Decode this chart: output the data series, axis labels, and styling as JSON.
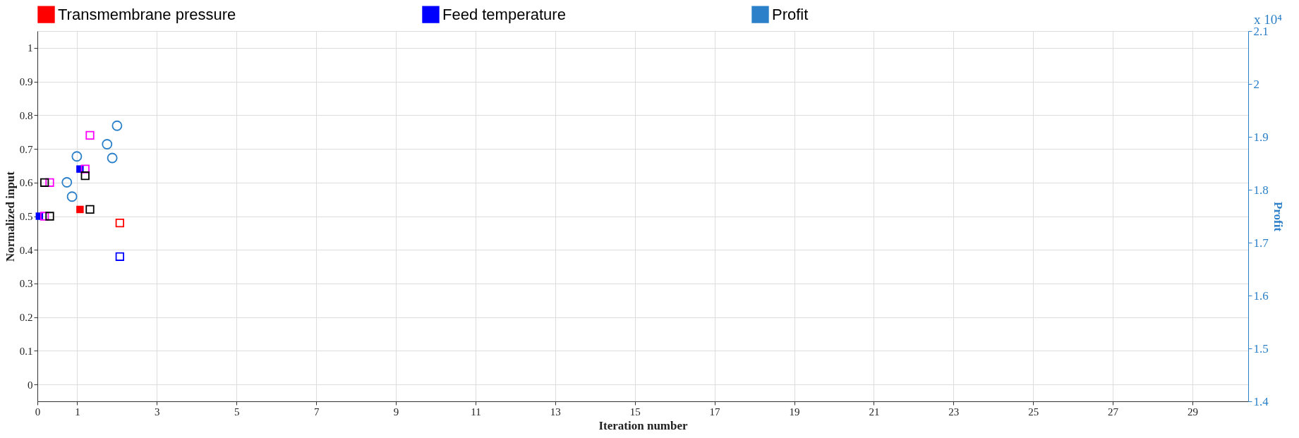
{
  "chart_data": {
    "type": "scatter",
    "xlabel": "Iteration number",
    "ylabel": "Normalized input",
    "y2label": "Profit",
    "xlim": [
      0,
      30.4
    ],
    "xticks": [
      0,
      1,
      3,
      5,
      7,
      9,
      11,
      13,
      15,
      17,
      19,
      21,
      23,
      25,
      27,
      29
    ],
    "ylim": [
      -0.05,
      1.05
    ],
    "yticks": [
      0,
      0.1,
      0.2,
      0.3,
      0.4,
      0.5,
      0.6,
      0.7,
      0.8,
      0.9,
      1
    ],
    "y2lim": [
      1.4,
      2.1
    ],
    "y2ticks": [
      1.4,
      1.5,
      1.6,
      1.7,
      1.8,
      1.9,
      2,
      2.1
    ],
    "annotations": [
      "x 10⁴"
    ],
    "grid": true,
    "legend": "top",
    "marker": "square",
    "series": [
      {
        "name": "Transmembrane pressure",
        "color": "#ff0000",
        "x": [
          1.07
        ],
        "values": [
          0.52
        ]
      },
      {
        "name": "Feed temperature",
        "color": "#0000ff",
        "x": [
          0.05,
          1.07
        ],
        "values": [
          0.5,
          0.64
        ]
      },
      {
        "name": "Profit",
        "color": "#2b80c9",
        "axis": "y2",
        "marker": "circle",
        "x": [
          0.74,
          0.87,
          0.99,
          1.75,
          1.88,
          2.0
        ],
        "values": [
          1.814,
          1.787,
          1.863,
          1.886,
          1.86,
          1.921
        ]
      },
      {
        "color": "#ff00ff",
        "x": [
          0.18,
          0.31,
          1.2,
          1.32
        ],
        "values": [
          0.5,
          0.6,
          0.64,
          0.74
        ]
      },
      {
        "color": "#000000",
        "x": [
          0.31,
          0.18,
          1.2,
          1.32
        ],
        "values": [
          0.5,
          0.6,
          0.62,
          0.52
        ]
      },
      {
        "color": "#ff0000",
        "x": [
          2.07
        ],
        "values": [
          0.48
        ]
      },
      {
        "color": "#0000ff",
        "x": [
          2.07
        ],
        "values": [
          0.38
        ]
      }
    ]
  }
}
